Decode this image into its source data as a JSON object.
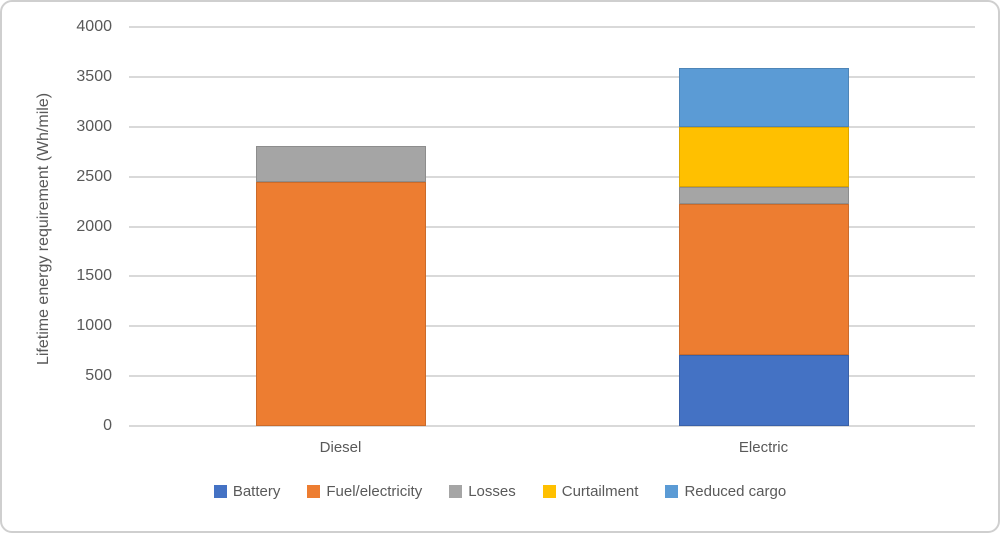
{
  "chart_data": {
    "type": "bar",
    "stacked": true,
    "title": "",
    "xlabel": "",
    "ylabel": "Lifetime energy requirement (Wh/mile)",
    "ylim": [
      0,
      4000
    ],
    "ytick_step": 500,
    "ytick_labels": [
      "0",
      "500",
      "1000",
      "1500",
      "2000",
      "2500",
      "3000",
      "3500",
      "4000"
    ],
    "grid": true,
    "legend_position": "bottom",
    "categories": [
      "Diesel",
      "Electric"
    ],
    "series": [
      {
        "name": "Battery",
        "color": "#4472C4",
        "values": [
          0,
          710
        ]
      },
      {
        "name": "Fuel/electricity",
        "color": "#ED7D31",
        "values": [
          2450,
          1520
        ]
      },
      {
        "name": "Losses",
        "color": "#A5A5A5",
        "values": [
          360,
          170
        ]
      },
      {
        "name": "Curtailment",
        "color": "#FFC000",
        "values": [
          0,
          600
        ]
      },
      {
        "name": "Reduced cargo",
        "color": "#5B9BD5",
        "values": [
          0,
          590
        ]
      }
    ],
    "category_totals": [
      2810,
      3590
    ]
  },
  "style_colors": {
    "gridline": "#D9D9D9",
    "axis_text": "#595959",
    "legend_text": "#595959"
  }
}
